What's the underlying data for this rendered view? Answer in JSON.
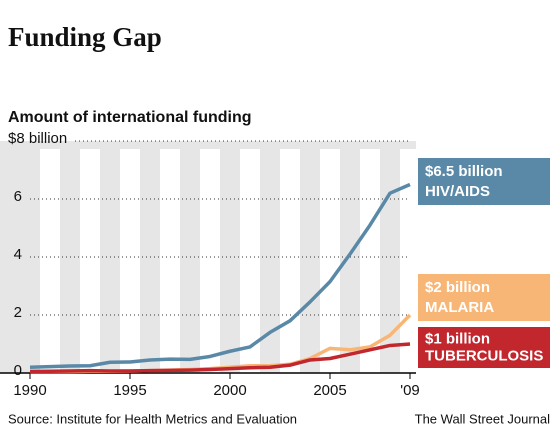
{
  "chart_data": {
    "type": "line",
    "title": "Funding Gap",
    "subtitle": "Amount of international funding",
    "source": "Source: Institute for Health Metrics and Evaluation",
    "credit": "The Wall Street Journal",
    "x": [
      1990,
      1991,
      1992,
      1993,
      1994,
      1995,
      1996,
      1997,
      1998,
      1999,
      2000,
      2001,
      2002,
      2003,
      2004,
      2005,
      2006,
      2007,
      2008,
      2009
    ],
    "xlim": [
      1990,
      2009
    ],
    "xticks": [
      1990,
      1995,
      2000,
      2005,
      {
        "value": 2009,
        "label": "'09"
      }
    ],
    "ylim": [
      0,
      8
    ],
    "yticks": [
      0,
      2,
      4,
      6,
      {
        "value": 8,
        "label": "$8 billion"
      }
    ],
    "grid": true,
    "series": [
      {
        "name": "MALARIA",
        "end_label": "$2 billion",
        "color": "#f8b676",
        "values": [
          0.05,
          0.05,
          0.05,
          0.06,
          0.06,
          0.07,
          0.08,
          0.1,
          0.12,
          0.15,
          0.2,
          0.25,
          0.25,
          0.3,
          0.5,
          0.85,
          0.8,
          0.9,
          1.3,
          2.0
        ]
      },
      {
        "name": "TUBERCULOSIS",
        "end_label": "$1 billion",
        "color": "#c1272d",
        "values": [
          0.05,
          0.06,
          0.07,
          0.08,
          0.07,
          0.07,
          0.08,
          0.09,
          0.1,
          0.12,
          0.15,
          0.18,
          0.2,
          0.27,
          0.45,
          0.5,
          0.65,
          0.8,
          0.95,
          1.0
        ]
      },
      {
        "name": "HIV/AIDS",
        "end_label": "$6.5 billion",
        "color": "#5a89a8",
        "values": [
          0.2,
          0.22,
          0.24,
          0.25,
          0.37,
          0.38,
          0.45,
          0.48,
          0.47,
          0.57,
          0.75,
          0.9,
          1.4,
          1.8,
          2.45,
          3.15,
          4.1,
          5.1,
          6.2,
          6.5
        ]
      }
    ]
  }
}
